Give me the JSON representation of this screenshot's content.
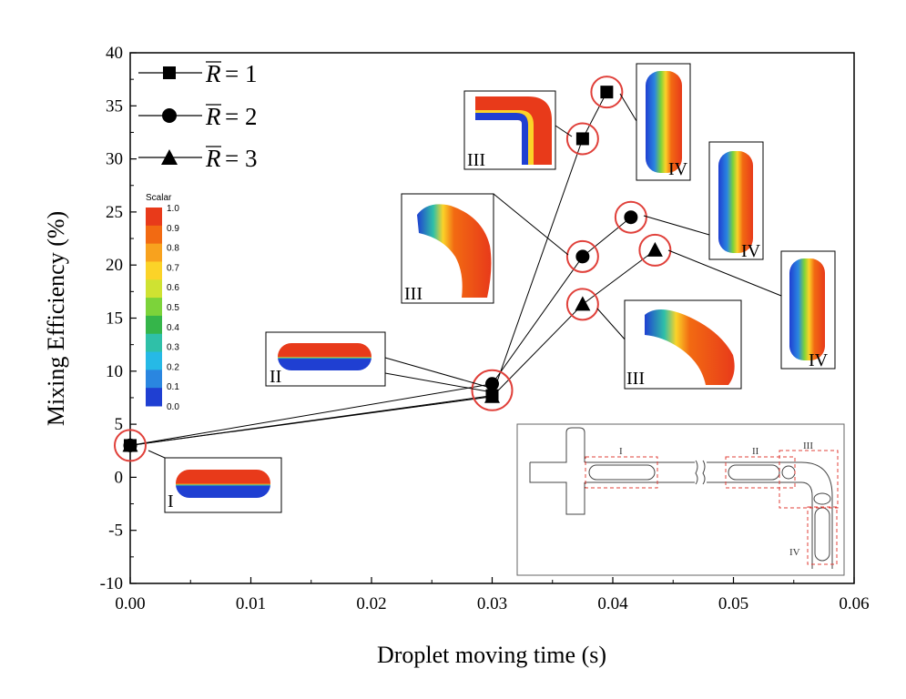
{
  "chart_data": {
    "type": "line",
    "xlabel": "Droplet moving time (s)",
    "ylabel": "Mixing Efficiency (%)",
    "xlim": [
      0,
      0.06
    ],
    "ylim": [
      -10,
      40
    ],
    "xticks": [
      "0.00",
      "0.01",
      "0.02",
      "0.03",
      "0.04",
      "0.05",
      "0.06"
    ],
    "yticks": [
      "-10",
      "-5",
      "0",
      "5",
      "10",
      "15",
      "20",
      "25",
      "30",
      "35",
      "40"
    ],
    "legend_position": "top-left",
    "legend_symbol": "R",
    "series": [
      {
        "name": "= 1",
        "marker": "square",
        "points": [
          [
            0.0,
            3.0
          ],
          [
            0.03,
            7.7
          ],
          [
            0.0375,
            31.9
          ],
          [
            0.0395,
            36.3
          ]
        ]
      },
      {
        "name": "= 2",
        "marker": "circle",
        "points": [
          [
            0.0,
            3.0
          ],
          [
            0.03,
            8.8
          ],
          [
            0.0375,
            20.8
          ],
          [
            0.0415,
            24.5
          ]
        ]
      },
      {
        "name": "= 3",
        "marker": "triangle",
        "points": [
          [
            0.0,
            3.0
          ],
          [
            0.03,
            7.6
          ],
          [
            0.0375,
            16.3
          ],
          [
            0.0435,
            21.4
          ]
        ]
      }
    ],
    "annotations": {
      "stage_labels": [
        "I",
        "II",
        "III",
        "III",
        "III",
        "IV",
        "IV",
        "IV"
      ],
      "scalar_bar": {
        "title": "Scalar",
        "labels": [
          "1.0",
          "0.9",
          "0.8",
          "0.7",
          "0.6",
          "0.5",
          "0.4",
          "0.3",
          "0.2",
          "0.1",
          "0.0"
        ],
        "colors": [
          "#e83a1a",
          "#f26a12",
          "#f8a21e",
          "#fbd328",
          "#cfe232",
          "#7cd33a",
          "#35b54a",
          "#2fc0a8",
          "#26b9e6",
          "#2a86e0",
          "#1f3fd2"
        ]
      },
      "inset_labels": [
        "I",
        "II",
        "III",
        "IV"
      ]
    }
  }
}
